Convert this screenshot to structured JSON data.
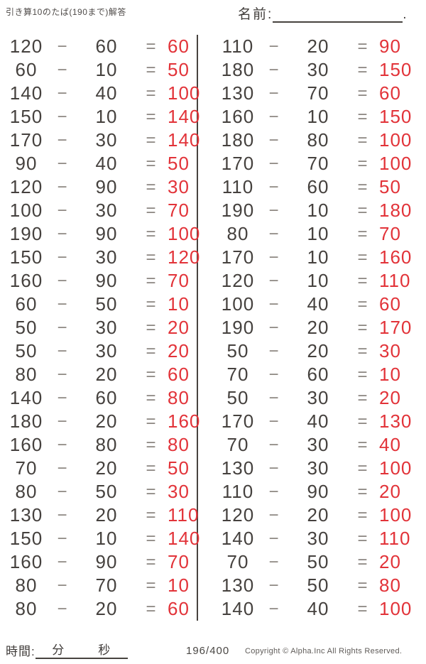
{
  "header": {
    "title": "引き算10のたば(190まで)解答",
    "name_label": "名前:",
    "name_trailing_dot": "."
  },
  "ops": {
    "minus": "−",
    "equals": "="
  },
  "problems": {
    "left": [
      {
        "a": "120",
        "b": "60",
        "ans": "60"
      },
      {
        "a": "60",
        "b": "10",
        "ans": "50"
      },
      {
        "a": "140",
        "b": "40",
        "ans": "100"
      },
      {
        "a": "150",
        "b": "10",
        "ans": "140"
      },
      {
        "a": "170",
        "b": "30",
        "ans": "140"
      },
      {
        "a": "90",
        "b": "40",
        "ans": "50"
      },
      {
        "a": "120",
        "b": "90",
        "ans": "30"
      },
      {
        "a": "100",
        "b": "30",
        "ans": "70"
      },
      {
        "a": "190",
        "b": "90",
        "ans": "100"
      },
      {
        "a": "150",
        "b": "30",
        "ans": "120"
      },
      {
        "a": "160",
        "b": "90",
        "ans": "70"
      },
      {
        "a": "60",
        "b": "50",
        "ans": "10"
      },
      {
        "a": "50",
        "b": "30",
        "ans": "20"
      },
      {
        "a": "50",
        "b": "30",
        "ans": "20"
      },
      {
        "a": "80",
        "b": "20",
        "ans": "60"
      },
      {
        "a": "140",
        "b": "60",
        "ans": "80"
      },
      {
        "a": "180",
        "b": "20",
        "ans": "160"
      },
      {
        "a": "160",
        "b": "80",
        "ans": "80"
      },
      {
        "a": "70",
        "b": "20",
        "ans": "50"
      },
      {
        "a": "80",
        "b": "50",
        "ans": "30"
      },
      {
        "a": "130",
        "b": "20",
        "ans": "110"
      },
      {
        "a": "150",
        "b": "10",
        "ans": "140"
      },
      {
        "a": "160",
        "b": "90",
        "ans": "70"
      },
      {
        "a": "80",
        "b": "70",
        "ans": "10"
      },
      {
        "a": "80",
        "b": "20",
        "ans": "60"
      }
    ],
    "right": [
      {
        "a": "110",
        "b": "20",
        "ans": "90"
      },
      {
        "a": "180",
        "b": "30",
        "ans": "150"
      },
      {
        "a": "130",
        "b": "70",
        "ans": "60"
      },
      {
        "a": "160",
        "b": "10",
        "ans": "150"
      },
      {
        "a": "180",
        "b": "80",
        "ans": "100"
      },
      {
        "a": "170",
        "b": "70",
        "ans": "100"
      },
      {
        "a": "110",
        "b": "60",
        "ans": "50"
      },
      {
        "a": "190",
        "b": "10",
        "ans": "180"
      },
      {
        "a": "80",
        "b": "10",
        "ans": "70"
      },
      {
        "a": "170",
        "b": "10",
        "ans": "160"
      },
      {
        "a": "120",
        "b": "10",
        "ans": "110"
      },
      {
        "a": "100",
        "b": "40",
        "ans": "60"
      },
      {
        "a": "190",
        "b": "20",
        "ans": "170"
      },
      {
        "a": "50",
        "b": "20",
        "ans": "30"
      },
      {
        "a": "70",
        "b": "60",
        "ans": "10"
      },
      {
        "a": "50",
        "b": "30",
        "ans": "20"
      },
      {
        "a": "170",
        "b": "40",
        "ans": "130"
      },
      {
        "a": "70",
        "b": "30",
        "ans": "40"
      },
      {
        "a": "130",
        "b": "30",
        "ans": "100"
      },
      {
        "a": "110",
        "b": "90",
        "ans": "20"
      },
      {
        "a": "120",
        "b": "20",
        "ans": "100"
      },
      {
        "a": "140",
        "b": "30",
        "ans": "110"
      },
      {
        "a": "70",
        "b": "50",
        "ans": "20"
      },
      {
        "a": "130",
        "b": "50",
        "ans": "80"
      },
      {
        "a": "140",
        "b": "40",
        "ans": "100"
      }
    ]
  },
  "footer": {
    "time_label": "時間:",
    "minutes_label": "分",
    "seconds_label": "秒",
    "page_number": "196/400",
    "copyright": "Copyright ©  Alpha.Inc All Rights Reserved."
  },
  "colors": {
    "answer_red": "#e23339",
    "ink_dark": "#45413e",
    "operator_gray": "#8b8580"
  }
}
